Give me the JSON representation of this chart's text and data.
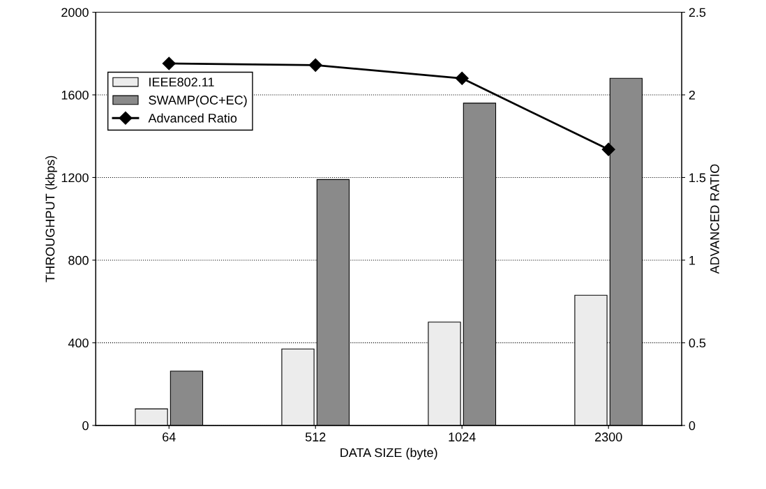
{
  "chart_data": {
    "type": "bar",
    "xlabel": "DATA SIZE (byte)",
    "ylabel": "THROUGHPUT (kbps)",
    "y2label": "ADVANCED RATIO",
    "categories": [
      "64",
      "512",
      "1024",
      "2300"
    ],
    "series": [
      {
        "name": "IEEE802.11",
        "color": "#ececec",
        "values": [
          80,
          370,
          500,
          630
        ]
      },
      {
        "name": "SWAMP(OC+EC)",
        "color": "#8a8a8a",
        "values": [
          263,
          1190,
          1560,
          1680
        ]
      },
      {
        "name": "Advanced Ratio",
        "type": "line",
        "axis": "y2",
        "color": "#000000",
        "marker": "diamond",
        "values": [
          2.19,
          2.18,
          2.1,
          1.67
        ]
      }
    ],
    "ylim": [
      0,
      2000
    ],
    "yticks": [
      0,
      400,
      800,
      1200,
      1600,
      2000
    ],
    "y2lim": [
      0,
      2.5
    ],
    "y2ticks": [
      0,
      0.5,
      1,
      1.5,
      2,
      2.5
    ],
    "grid": "y",
    "legend": "top left"
  }
}
